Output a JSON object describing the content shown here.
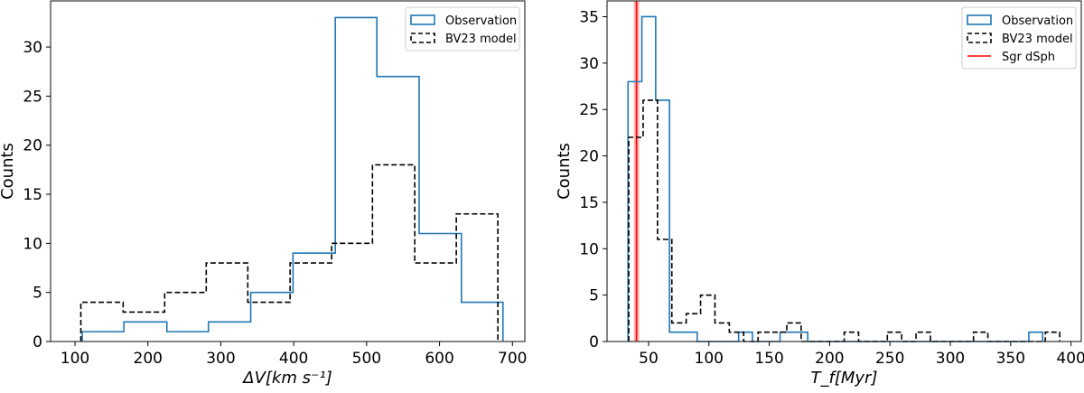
{
  "chart_data": [
    {
      "type": "histogram",
      "xlabel": "ΔV[km s⁻¹]",
      "ylabel": "Counts",
      "xlim": [
        66.5,
        717
      ],
      "ylim": [
        0,
        34.7
      ],
      "xticks": [
        100,
        200,
        300,
        400,
        500,
        600,
        700
      ],
      "yticks": [
        0,
        5,
        10,
        15,
        20,
        25,
        30
      ],
      "grid": false,
      "legend_position": "top-right",
      "series": [
        {
          "name": "Observation",
          "style": "step-solid",
          "color": "#1f77b4",
          "bin_edges": [
            110,
            167,
            226,
            283,
            341,
            399,
            457,
            514,
            572,
            630,
            687
          ],
          "counts": [
            1,
            2,
            1,
            2,
            5,
            9,
            33,
            27,
            11,
            4
          ]
        },
        {
          "name": "BV23 model",
          "style": "step-dashed",
          "color": "#000000",
          "bin_edges": [
            108,
            166,
            223,
            280,
            337,
            395,
            452,
            508,
            566,
            623,
            680
          ],
          "counts": [
            4,
            3,
            5,
            8,
            4,
            8,
            10,
            18,
            8,
            13
          ]
        }
      ]
    },
    {
      "type": "histogram",
      "xlabel": "T_f[Myr]",
      "ylabel": "Counts",
      "xlim": [
        15.6,
        408.5
      ],
      "ylim": [
        0,
        36.7
      ],
      "xticks": [
        50,
        100,
        150,
        200,
        250,
        300,
        350,
        400
      ],
      "yticks": [
        0,
        5,
        10,
        15,
        20,
        25,
        30,
        35
      ],
      "grid": false,
      "legend_position": "top-right",
      "series": [
        {
          "name": "Observation",
          "style": "step-solid",
          "color": "#1f77b4",
          "bin_start": 33,
          "bin_width": 11.45,
          "counts": [
            28,
            35,
            26,
            1,
            1,
            0,
            0,
            0,
            1,
            0,
            0,
            1,
            1,
            0,
            0,
            0,
            0,
            0,
            0,
            0,
            0,
            0,
            0,
            0,
            0,
            0,
            0,
            0,
            0,
            1
          ]
        },
        {
          "name": "BV23 model",
          "style": "step-dashed",
          "color": "#000000",
          "bin_start": 33.6,
          "bin_width": 11.9,
          "counts": [
            22,
            26,
            11,
            2,
            3,
            5,
            2,
            1,
            0,
            1,
            1,
            2,
            0,
            0,
            0,
            1,
            0,
            0,
            1,
            0,
            1,
            0,
            0,
            0,
            1,
            0,
            0,
            0,
            0,
            1
          ]
        }
      ],
      "vlines": [
        {
          "name": "Sgr dSph",
          "x": 40,
          "color": "#ff0000"
        }
      ]
    }
  ]
}
